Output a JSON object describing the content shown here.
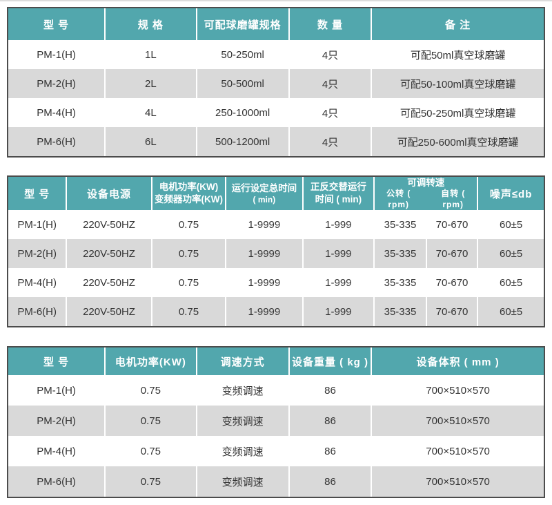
{
  "colors": {
    "accent": "#52a7ad",
    "stripe": "#d9d9d9",
    "table_border": "#4c4c4c",
    "header_text": "#ffffff",
    "body_text": "#333333"
  },
  "jar_spec_table": {
    "headers": [
      "型 号",
      "规 格",
      "可配球磨罐规格",
      "数 量",
      "备 注"
    ],
    "rows": [
      [
        "PM-1(H)",
        "1L",
        "50-250ml",
        "4只",
        "可配50ml真空球磨罐"
      ],
      [
        "PM-2(H)",
        "2L",
        "50-500ml",
        "4只",
        "可配50-100ml真空球磨罐"
      ],
      [
        "PM-4(H)",
        "4L",
        "250-1000ml",
        "4只",
        "可配50-250ml真空球磨罐"
      ],
      [
        "PM-6(H)",
        "6L",
        "500-1200ml",
        "4只",
        "可配250-600ml真空球磨罐"
      ]
    ]
  },
  "performance_table": {
    "headers": {
      "model": "型 号",
      "power_supply": "设备电源",
      "motor_lines": [
        "电机功率(KW)",
        "变频器功率(KW)"
      ],
      "runtime_lines": [
        "运行设定总时间",
        "( min)"
      ],
      "alternate_lines": [
        "正反交替运行",
        "时间 ( min)"
      ],
      "speed_group": "可调转速",
      "speed_sub": [
        "公转 ( rpm)",
        "自转 ( rpm)"
      ],
      "noise": "噪声≤db"
    },
    "rows": [
      [
        "PM-1(H)",
        "220V-50HZ",
        "0.75",
        "1-9999",
        "1-999",
        "35-335",
        "70-670",
        "60±5"
      ],
      [
        "PM-2(H)",
        "220V-50HZ",
        "0.75",
        "1-9999",
        "1-999",
        "35-335",
        "70-670",
        "60±5"
      ],
      [
        "PM-4(H)",
        "220V-50HZ",
        "0.75",
        "1-9999",
        "1-999",
        "35-335",
        "70-670",
        "60±5"
      ],
      [
        "PM-6(H)",
        "220V-50HZ",
        "0.75",
        "1-9999",
        "1-999",
        "35-335",
        "70-670",
        "60±5"
      ]
    ]
  },
  "physical_table": {
    "headers": [
      "型 号",
      "电机功率(KW)",
      "调速方式",
      "设备重量 ( kg )",
      "设备体积 ( mm )"
    ],
    "rows": [
      [
        "PM-1(H)",
        "0.75",
        "变频调速",
        "86",
        "700×510×570"
      ],
      [
        "PM-2(H)",
        "0.75",
        "变频调速",
        "86",
        "700×510×570"
      ],
      [
        "PM-4(H)",
        "0.75",
        "变频调速",
        "86",
        "700×510×570"
      ],
      [
        "PM-6(H)",
        "0.75",
        "变频调速",
        "86",
        "700×510×570"
      ]
    ]
  }
}
